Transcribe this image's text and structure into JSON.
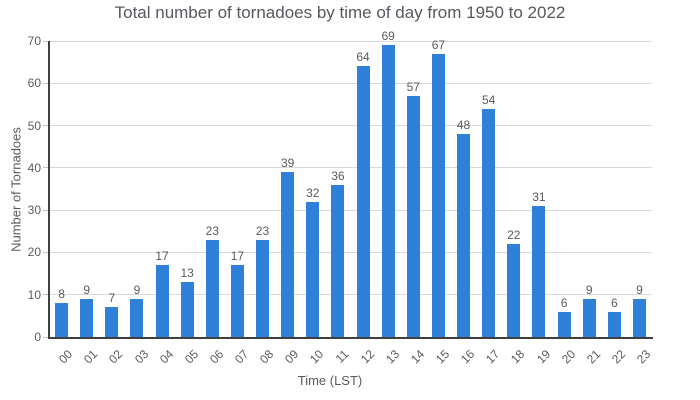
{
  "chart_data": {
    "type": "bar",
    "title": "Total number of tornadoes by time of day from 1950 to 2022",
    "xlabel": "Time (LST)",
    "ylabel": "Number of Tornadoes",
    "categories": [
      "00",
      "01",
      "02",
      "03",
      "04",
      "05",
      "06",
      "07",
      "08",
      "09",
      "10",
      "11",
      "12",
      "13",
      "14",
      "15",
      "16",
      "17",
      "18",
      "19",
      "20",
      "21",
      "22",
      "23"
    ],
    "values": [
      8,
      9,
      7,
      9,
      17,
      13,
      23,
      17,
      23,
      39,
      32,
      36,
      64,
      69,
      57,
      67,
      48,
      54,
      22,
      31,
      6,
      9,
      6,
      9
    ],
    "ylim": [
      0,
      70
    ],
    "ytick_interval": 10,
    "grid": true,
    "legend": "none",
    "colors": {
      "bar": "#2f80d8",
      "title": "#55585c",
      "labels": "#5a5b5d",
      "gridline": "#d8d8d8",
      "tick": "#c2c2c2",
      "axis": "#3f3f3f",
      "background": "#ffffff"
    }
  }
}
